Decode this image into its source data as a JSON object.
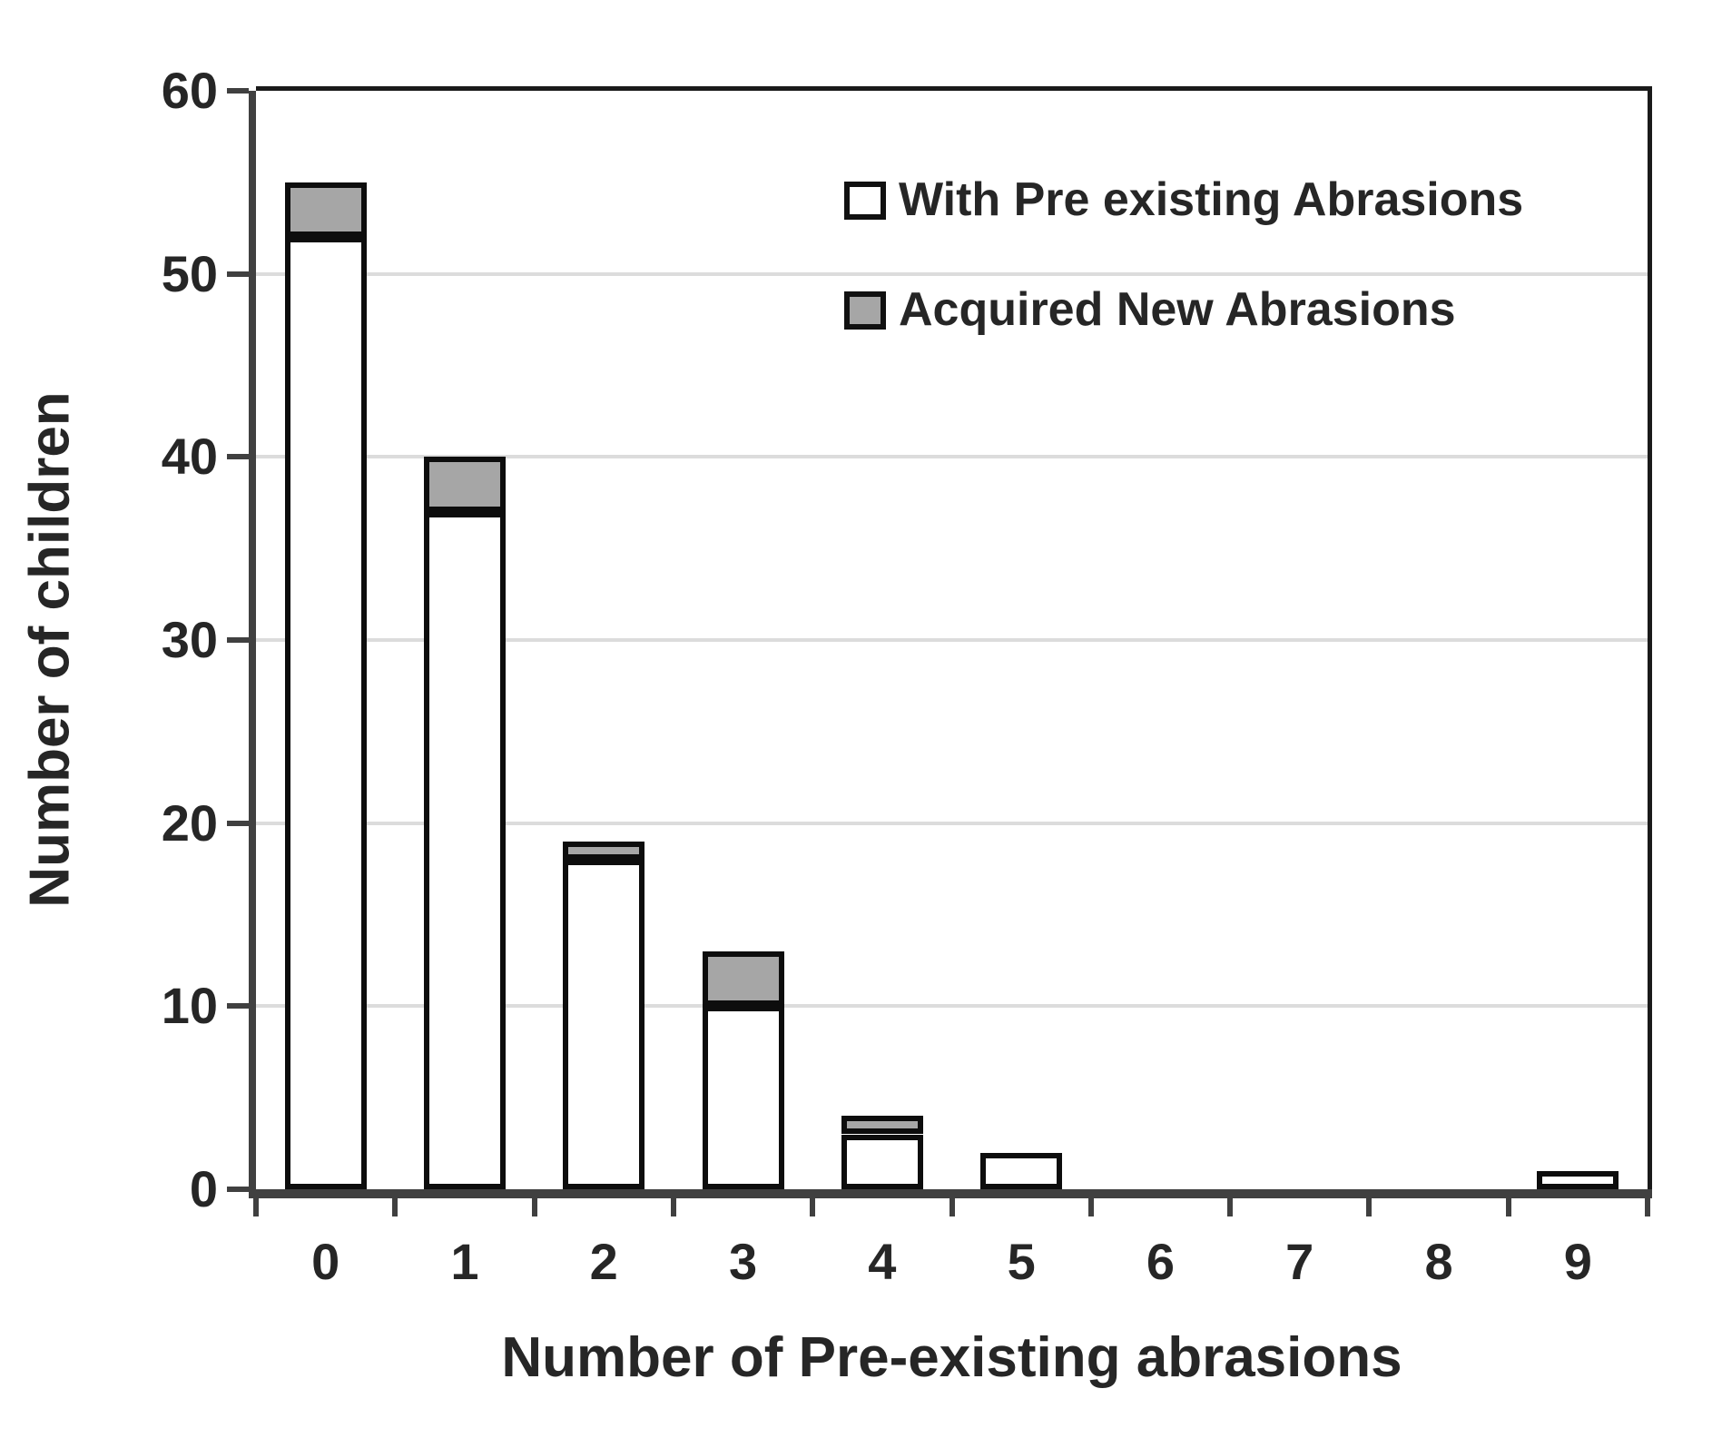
{
  "colors": {
    "bar_white": "#ffffff",
    "bar_gray": "#a6a6a6",
    "bar_border": "#0d0d0d",
    "gridline": "#dcdcdc",
    "axis": "#404040",
    "frame": "#1a1a1a",
    "text": "#262626"
  },
  "chart_data": {
    "type": "bar",
    "stacked": true,
    "title": "",
    "xlabel": "Number of Pre-existing abrasions",
    "ylabel": "Number of children",
    "categories": [
      "0",
      "1",
      "2",
      "3",
      "4",
      "5",
      "6",
      "7",
      "8",
      "9"
    ],
    "series": [
      {
        "name": "With Pre existing Abrasions",
        "color": "#ffffff",
        "values": [
          52,
          37,
          18,
          10,
          3,
          2,
          0,
          0,
          0,
          1
        ]
      },
      {
        "name": "Acquired New Abrasions",
        "color": "#a6a6a6",
        "values": [
          3,
          3,
          1,
          3,
          1,
          0,
          0,
          0,
          0,
          0
        ]
      }
    ],
    "totals": [
      55,
      40,
      19,
      13,
      4,
      2,
      0,
      0,
      0,
      1
    ],
    "ylim": [
      0,
      60
    ],
    "yticks": [
      0,
      10,
      20,
      30,
      40,
      50,
      60
    ],
    "grid": true,
    "legend_position": "top-right-inside"
  }
}
